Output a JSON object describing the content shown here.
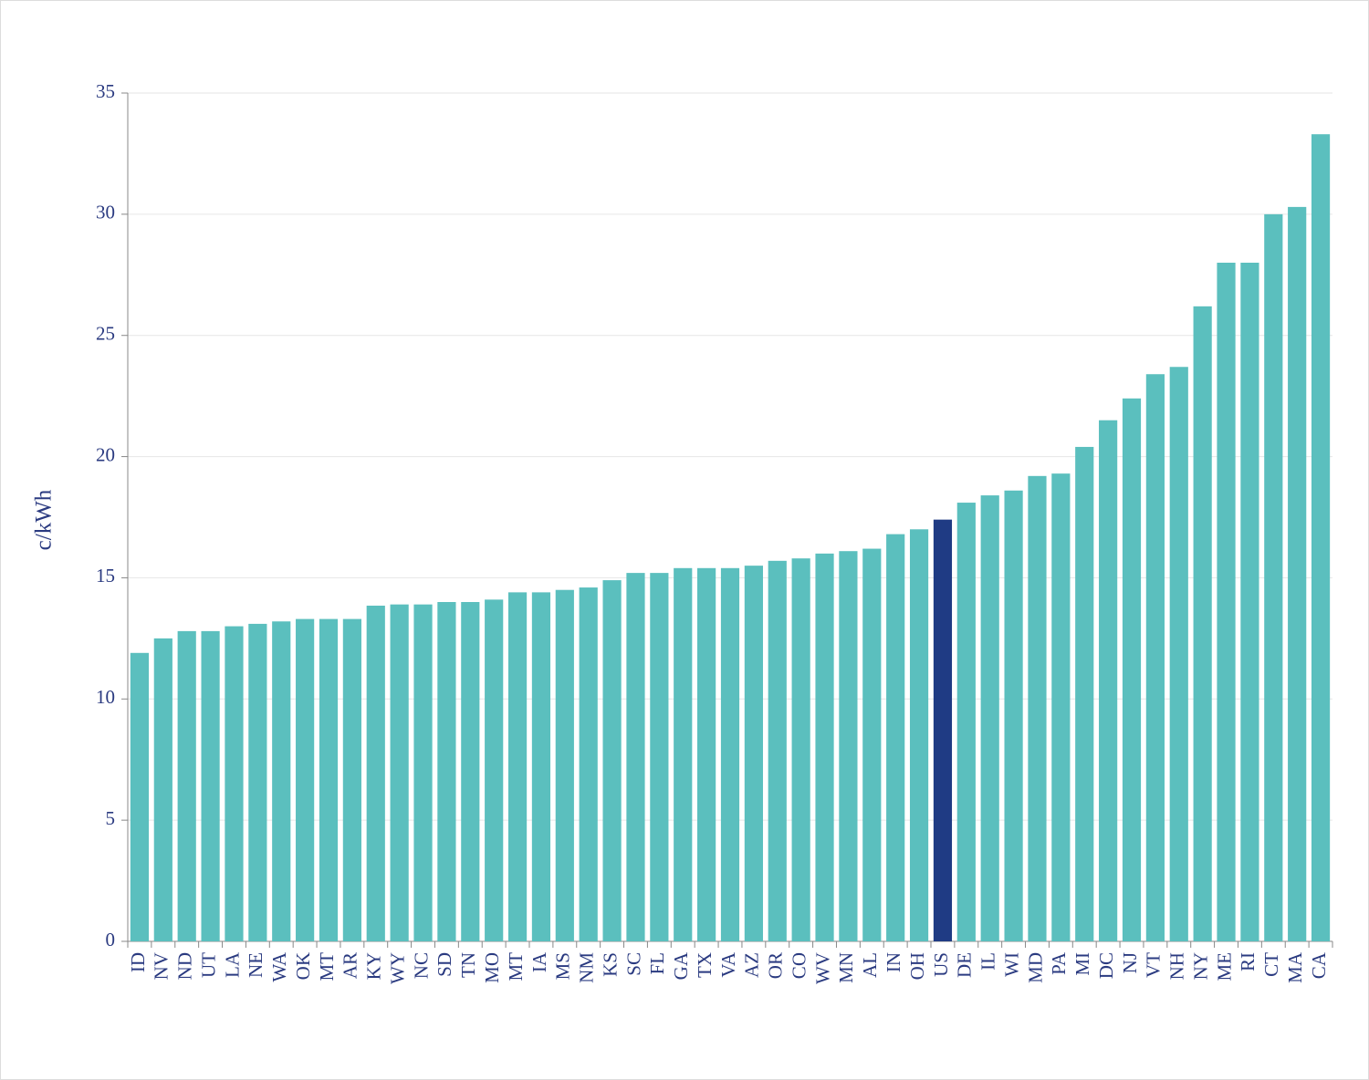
{
  "chart_data": {
    "type": "bar",
    "y_label": "c/kWh",
    "categories": [
      "ID",
      "NV",
      "ND",
      "UT",
      "LA",
      "NE",
      "WA",
      "OK",
      "MT",
      "AR",
      "KY",
      "WY",
      "NC",
      "SD",
      "TN",
      "MO",
      "MT",
      "IA",
      "MS",
      "NM",
      "KS",
      "SC",
      "FL",
      "GA",
      "TX",
      "VA",
      "AZ",
      "OR",
      "CO",
      "WV",
      "MN",
      "AL",
      "IN",
      "OH",
      "US",
      "DE",
      "IL",
      "WI",
      "MD",
      "PA",
      "MI",
      "DC",
      "NJ",
      "VT",
      "NH",
      "NY",
      "ME",
      "RI",
      "CT",
      "MA",
      "CA"
    ],
    "values": [
      11.9,
      12.5,
      12.8,
      12.8,
      13.0,
      13.1,
      13.2,
      13.3,
      13.3,
      13.3,
      13.85,
      13.9,
      13.9,
      14.0,
      14.0,
      14.1,
      14.4,
      14.4,
      14.5,
      14.6,
      14.9,
      15.2,
      15.2,
      15.4,
      15.4,
      15.4,
      15.5,
      15.7,
      15.8,
      16.0,
      16.1,
      16.2,
      16.8,
      17.0,
      17.4,
      18.1,
      18.4,
      18.6,
      19.2,
      19.3,
      20.4,
      21.5,
      22.4,
      23.4,
      23.7,
      26.2,
      28.0,
      28.0,
      30.0,
      30.3,
      33.3
    ],
    "color": "#5bbfbe",
    "highlight_color": "#1f3b84",
    "highlight_category": "US",
    "ylim": [
      0,
      35
    ],
    "yticks": [
      0,
      5,
      10,
      15,
      20,
      25,
      30,
      35
    ],
    "grid": true
  }
}
